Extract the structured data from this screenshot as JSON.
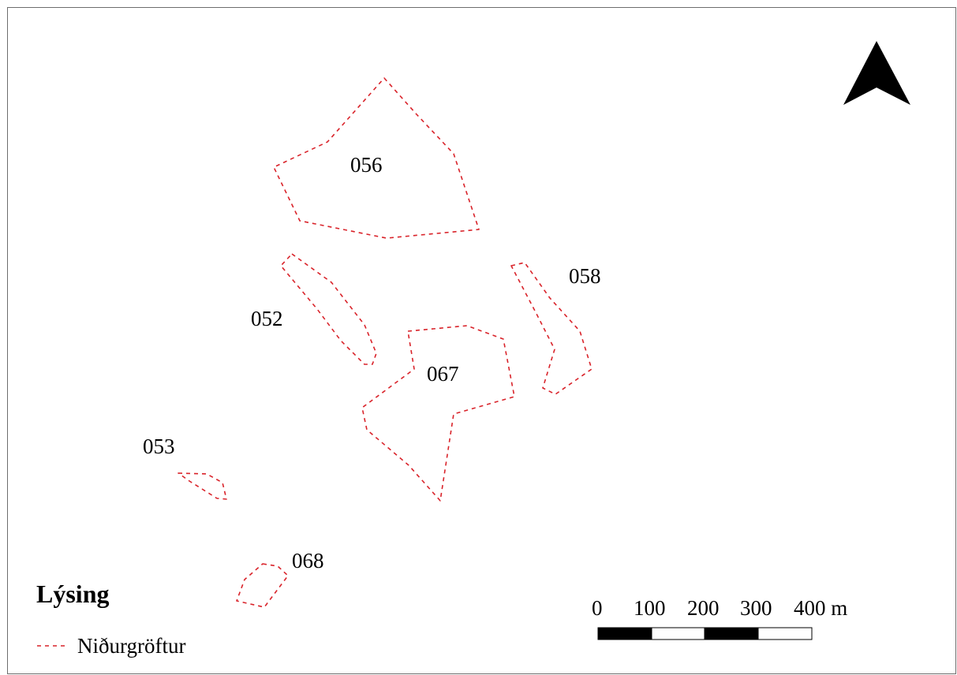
{
  "map": {
    "areas": [
      {
        "id": "056",
        "label": "056"
      },
      {
        "id": "052",
        "label": "052"
      },
      {
        "id": "058",
        "label": "058"
      },
      {
        "id": "067",
        "label": "067"
      },
      {
        "id": "053",
        "label": "053"
      },
      {
        "id": "068",
        "label": "068"
      }
    ],
    "outline_color": "#d9232a",
    "north_arrow_icon": "north-arrow-icon"
  },
  "legend": {
    "title": "Lýsing",
    "items": [
      {
        "label": "Niðurgröftur",
        "symbol": "red-dashed-line"
      }
    ]
  },
  "scale_bar": {
    "labels": [
      "0",
      "100",
      "200",
      "300",
      "400 m"
    ],
    "unit": "m"
  }
}
